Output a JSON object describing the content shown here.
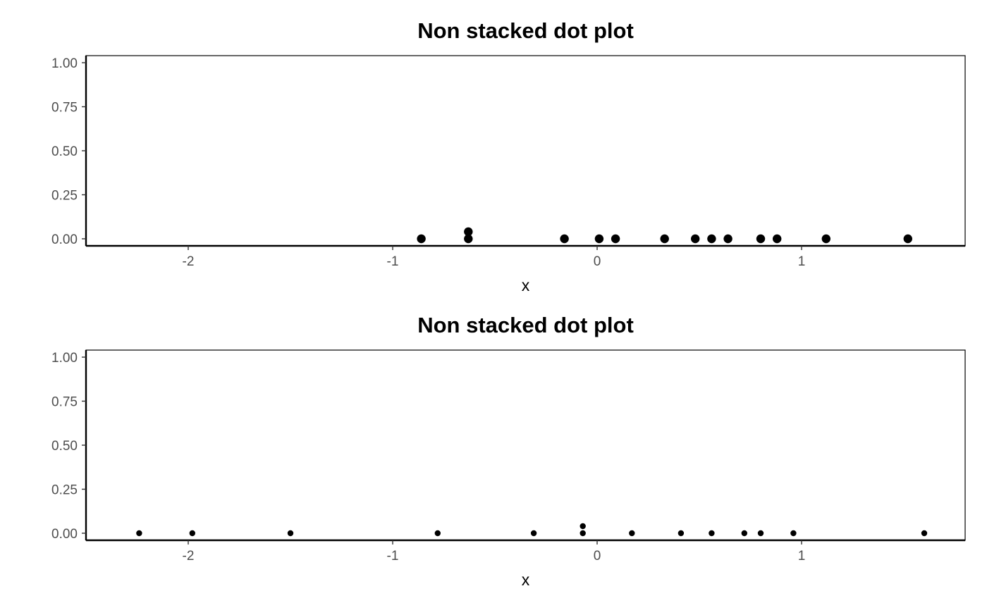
{
  "chart_data": [
    {
      "type": "scatter",
      "title": "Non stacked dot plot",
      "xlabel": "x",
      "ylabel": "",
      "xlim": [
        -2.5,
        1.8
      ],
      "ylim": [
        -0.04,
        1.04
      ],
      "x_ticks": [
        -2,
        -1,
        0,
        1
      ],
      "x_tick_labels": [
        "-2",
        "-1",
        "0",
        "1"
      ],
      "y_ticks": [
        0,
        0.25,
        0.5,
        0.75,
        1
      ],
      "y_tick_labels": [
        "0.00",
        "0.25",
        "0.50",
        "0.75",
        "1.00"
      ],
      "grid": false,
      "legend": "none",
      "dot_size": "large",
      "color": "#000000",
      "points": [
        {
          "x": -0.86,
          "y": 0
        },
        {
          "x": -0.63,
          "y": 0
        },
        {
          "x": -0.63,
          "y": 0.04
        },
        {
          "x": -0.16,
          "y": 0
        },
        {
          "x": 0.01,
          "y": 0
        },
        {
          "x": 0.09,
          "y": 0
        },
        {
          "x": 0.33,
          "y": 0
        },
        {
          "x": 0.48,
          "y": 0
        },
        {
          "x": 0.56,
          "y": 0
        },
        {
          "x": 0.64,
          "y": 0
        },
        {
          "x": 0.8,
          "y": 0
        },
        {
          "x": 0.88,
          "y": 0
        },
        {
          "x": 1.12,
          "y": 0
        },
        {
          "x": 1.52,
          "y": 0
        }
      ]
    },
    {
      "type": "scatter",
      "title": "Non stacked dot plot",
      "xlabel": "x",
      "ylabel": "",
      "xlim": [
        -2.5,
        1.8
      ],
      "ylim": [
        -0.04,
        1.04
      ],
      "x_ticks": [
        -2,
        -1,
        0,
        1
      ],
      "x_tick_labels": [
        "-2",
        "-1",
        "0",
        "1"
      ],
      "y_ticks": [
        0,
        0.25,
        0.5,
        0.75,
        1
      ],
      "y_tick_labels": [
        "0.00",
        "0.25",
        "0.50",
        "0.75",
        "1.00"
      ],
      "grid": false,
      "legend": "none",
      "dot_size": "small",
      "color": "#000000",
      "points": [
        {
          "x": -2.24,
          "y": 0
        },
        {
          "x": -1.98,
          "y": 0
        },
        {
          "x": -1.5,
          "y": 0
        },
        {
          "x": -0.78,
          "y": 0
        },
        {
          "x": -0.31,
          "y": 0
        },
        {
          "x": -0.07,
          "y": 0
        },
        {
          "x": -0.07,
          "y": 0.04
        },
        {
          "x": 0.17,
          "y": 0
        },
        {
          "x": 0.41,
          "y": 0
        },
        {
          "x": 0.56,
          "y": 0
        },
        {
          "x": 0.72,
          "y": 0
        },
        {
          "x": 0.8,
          "y": 0
        },
        {
          "x": 0.96,
          "y": 0
        },
        {
          "x": 1.6,
          "y": 0
        }
      ]
    }
  ]
}
